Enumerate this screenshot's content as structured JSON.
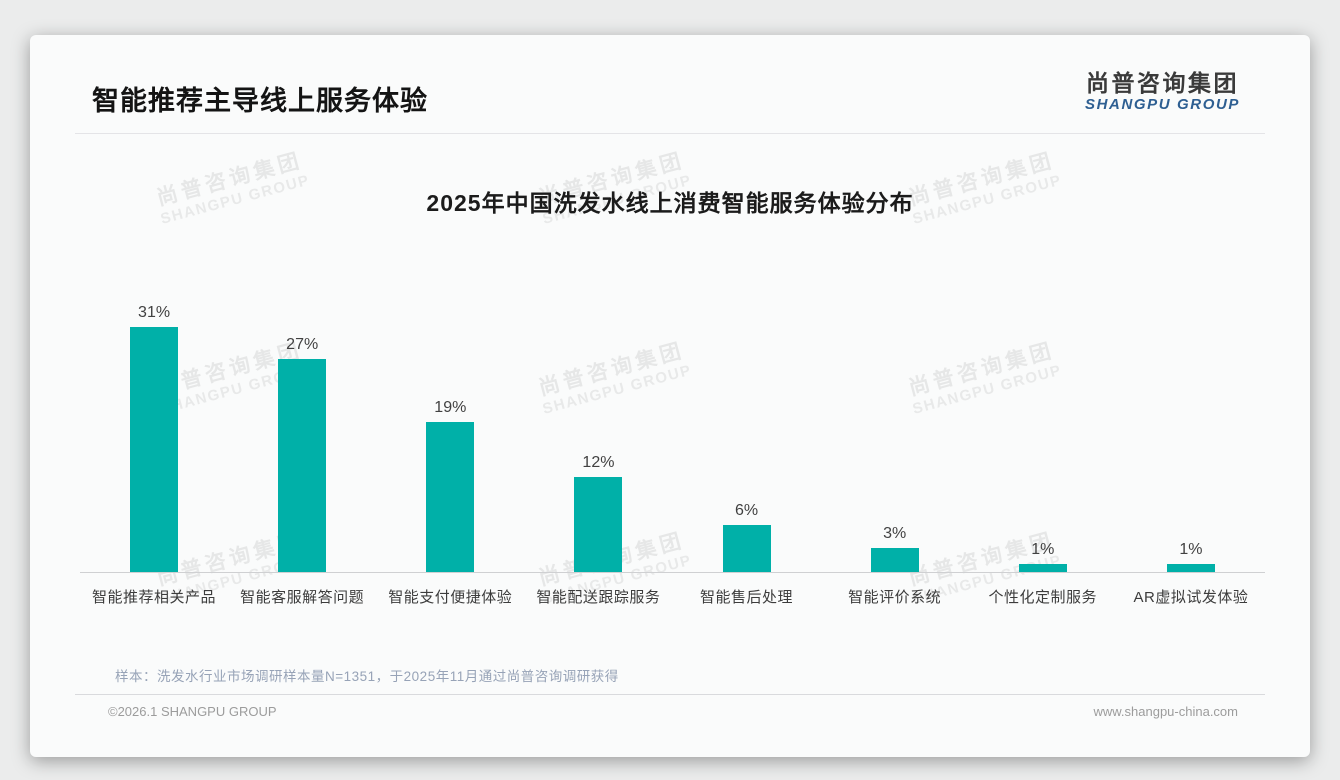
{
  "slide": {
    "header": {
      "title": "智能推荐主导线上服务体验"
    },
    "logo": {
      "cn": "尚普咨询集团",
      "en": "SHANGPU GROUP"
    },
    "watermark": {
      "cn": "尚普咨询集团",
      "en": "SHANGPU GROUP"
    },
    "note": "样本：洗发水行业市场调研样本量N=1351，于2025年11月通过尚普咨询调研获得",
    "footer": {
      "left": "©2026.1 SHANGPU GROUP",
      "right": "www.shangpu-china.com"
    }
  },
  "chart_data": {
    "type": "bar",
    "title": "2025年中国洗发水线上消费智能服务体验分布",
    "categories": [
      "智能推荐相关产品",
      "智能客服解答问题",
      "智能支付便捷体验",
      "智能配送跟踪服务",
      "智能售后处理",
      "智能评价系统",
      "个性化定制服务",
      "AR虚拟试发体验"
    ],
    "values": [
      31,
      27,
      19,
      12,
      6,
      3,
      1,
      1
    ],
    "unit": "%",
    "value_labels": [
      "31%",
      "27%",
      "19%",
      "12%",
      "6%",
      "3%",
      "1%",
      "1%"
    ],
    "xlabel": "",
    "ylabel": "",
    "ylim": [
      0,
      33
    ],
    "grid": false,
    "legend_position": "none",
    "bar_color": "#00B0A8"
  },
  "colors": {
    "accent_teal": "#00B0A8",
    "logo_blue": "#2E5F92",
    "note_gray_blue": "#97A3B7",
    "footer_gray": "#9C9C9C"
  }
}
